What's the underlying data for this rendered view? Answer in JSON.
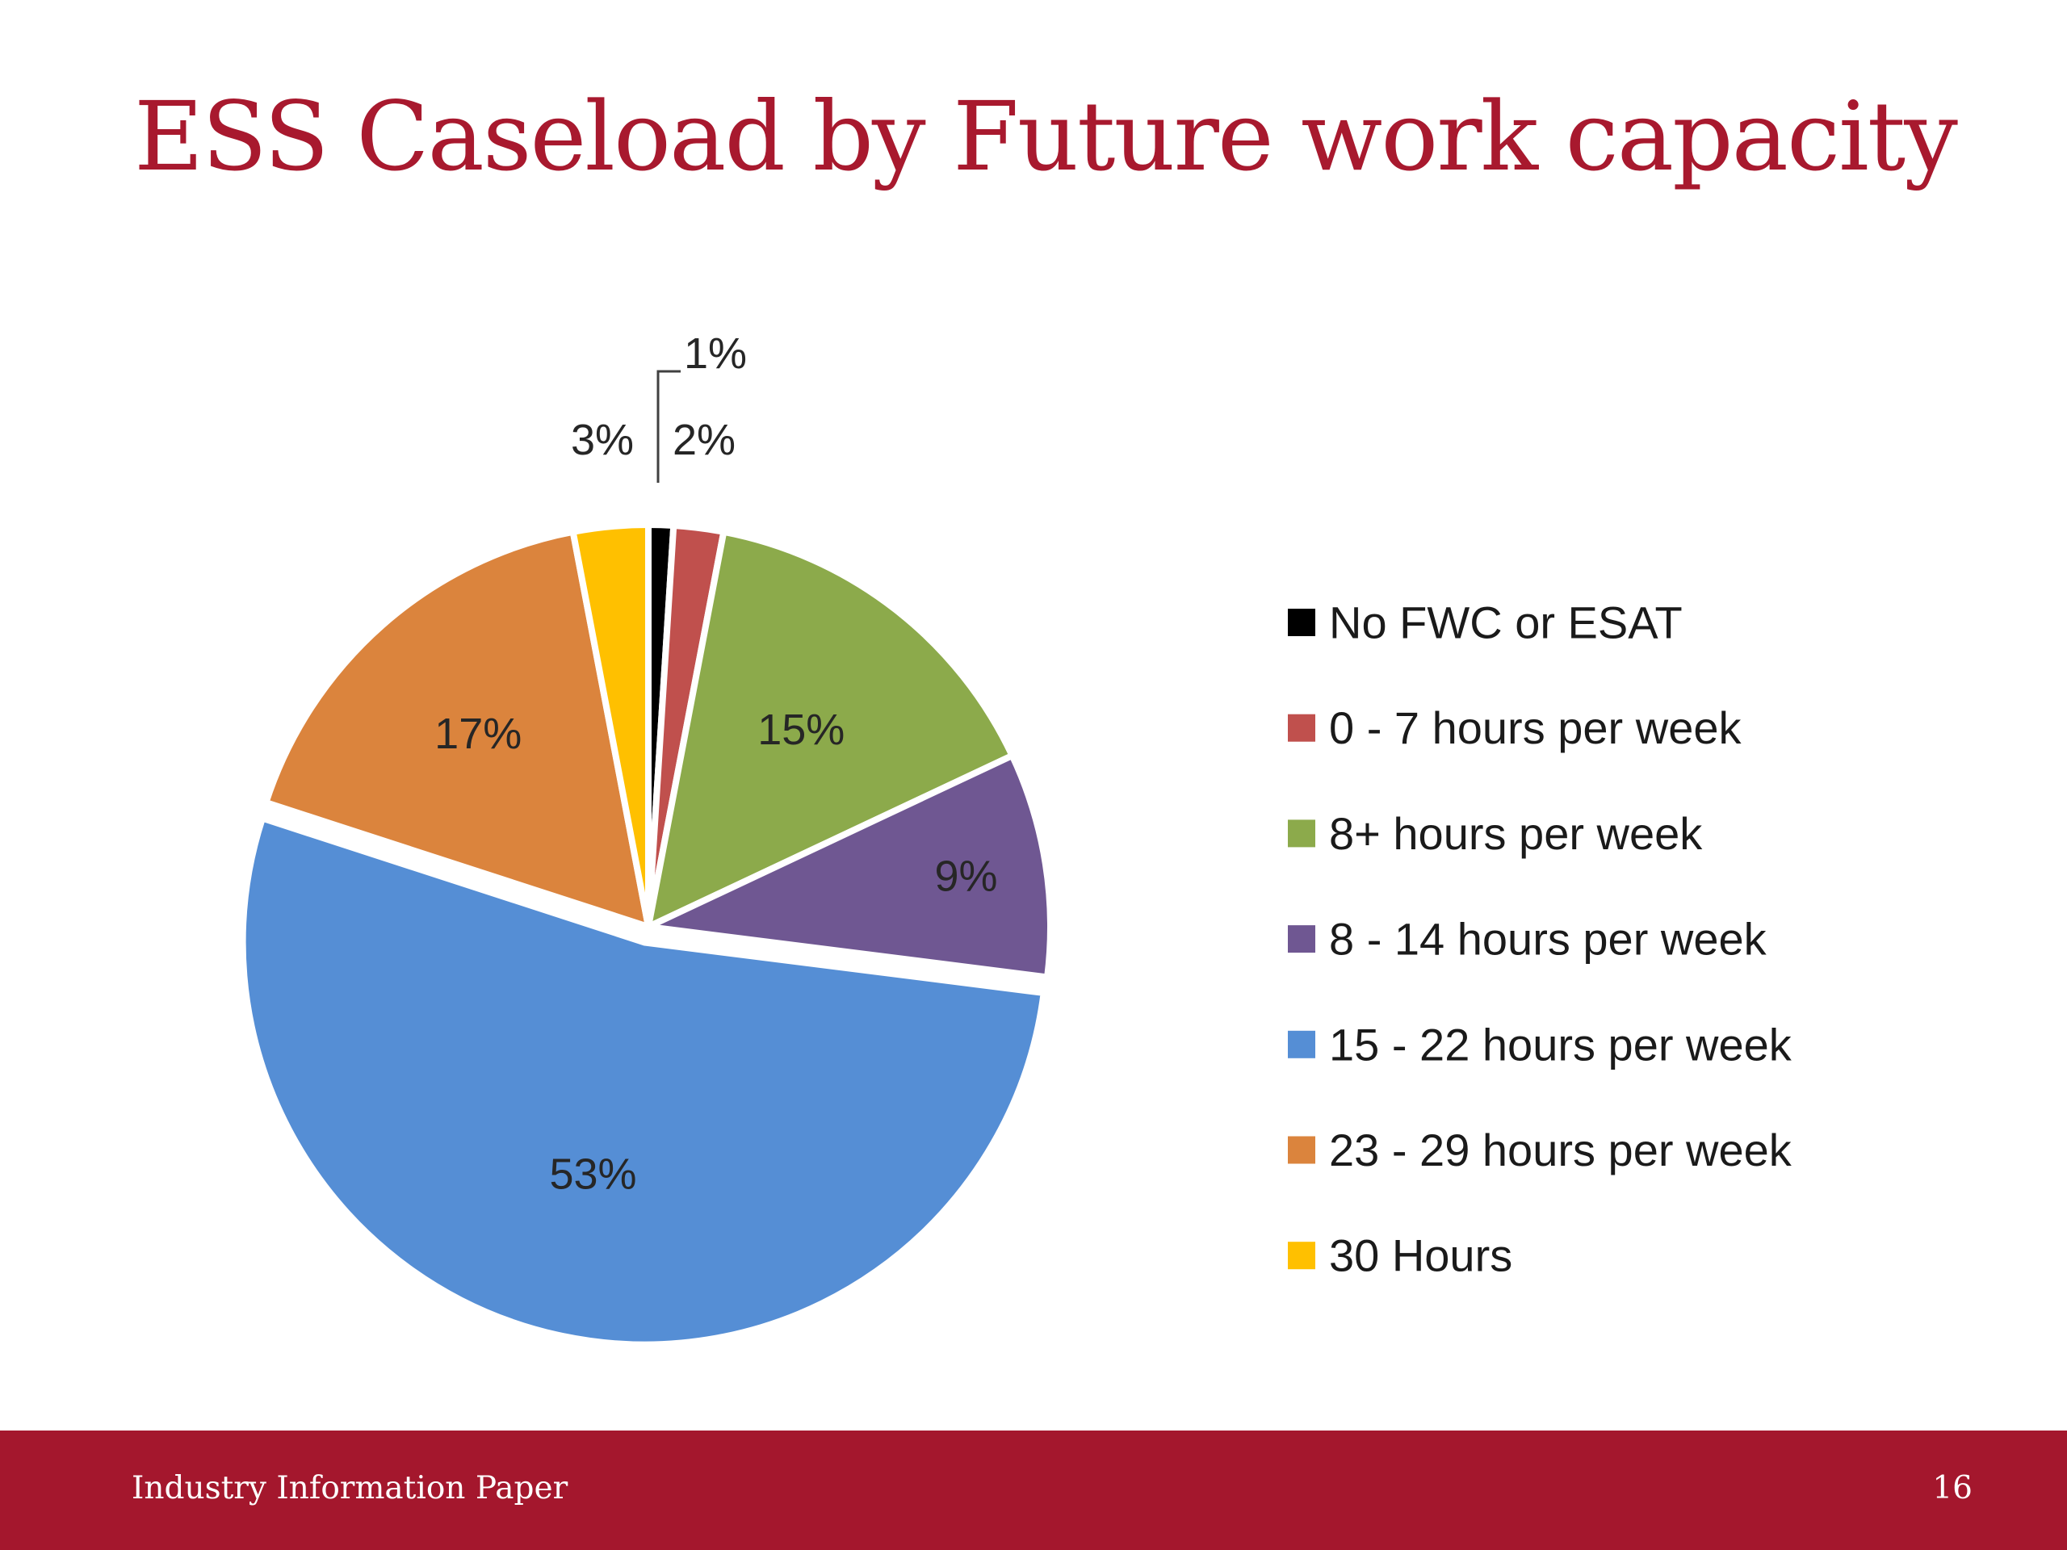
{
  "slide": {
    "title": "ESS Caseload by Future work capacity",
    "title_color": "#A8192E",
    "footer_text": "Industry Information Paper",
    "page_number": "16",
    "footer_color": "#A4172D"
  },
  "chart_data": {
    "type": "pie",
    "title": "",
    "legend_position": "right",
    "slices": [
      {
        "label": "No FWC or ESAT",
        "value": 1,
        "display": "1%",
        "color": "#000000"
      },
      {
        "label": "0 - 7 hours per week",
        "value": 2,
        "display": "2%",
        "color": "#C0504D"
      },
      {
        "label": "8+ hours per week",
        "value": 15,
        "display": "15%",
        "color": "#8CAA4B"
      },
      {
        "label": "8 - 14 hours per week",
        "value": 9,
        "display": "9%",
        "color": "#6F5792"
      },
      {
        "label": "15 - 22 hours per week",
        "value": 53,
        "display": "53%",
        "color": "#558ED5"
      },
      {
        "label": "23 - 29 hours per week",
        "value": 17,
        "display": "17%",
        "color": "#DB843D"
      },
      {
        "label": "30 Hours",
        "value": 3,
        "display": "3%",
        "color": "#FFC000"
      }
    ]
  }
}
